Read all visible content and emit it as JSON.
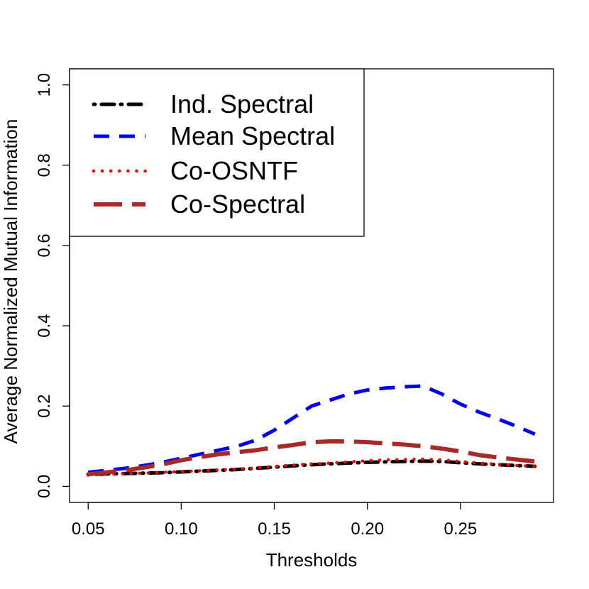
{
  "chart_data": {
    "type": "line",
    "title": "",
    "xlabel": "Thresholds",
    "ylabel": "Average Normalized Mutual Information",
    "xlim": [
      0.04,
      0.3
    ],
    "ylim": [
      -0.04,
      1.04
    ],
    "x_ticks": [
      0.05,
      0.1,
      0.15,
      0.2,
      0.25
    ],
    "x_tick_labels": [
      "0.05",
      "0.10",
      "0.15",
      "0.20",
      "0.25"
    ],
    "y_ticks": [
      0.0,
      0.2,
      0.4,
      0.6,
      0.8,
      1.0
    ],
    "y_tick_labels": [
      "0.0",
      "0.2",
      "0.4",
      "0.6",
      "0.8",
      "1.0"
    ],
    "grid": false,
    "legend_position": "top-left",
    "x": [
      0.05,
      0.06,
      0.07,
      0.08,
      0.09,
      0.1,
      0.11,
      0.12,
      0.13,
      0.14,
      0.15,
      0.16,
      0.17,
      0.18,
      0.19,
      0.2,
      0.21,
      0.22,
      0.23,
      0.24,
      0.25,
      0.26,
      0.27,
      0.28,
      0.29
    ],
    "series": [
      {
        "name": "Ind. Spectral",
        "color": "#000000",
        "dash": "dotdash",
        "values": [
          0.03,
          0.031,
          0.032,
          0.033,
          0.034,
          0.036,
          0.038,
          0.04,
          0.042,
          0.045,
          0.048,
          0.051,
          0.054,
          0.056,
          0.058,
          0.06,
          0.061,
          0.062,
          0.063,
          0.062,
          0.059,
          0.056,
          0.054,
          0.052,
          0.05
        ]
      },
      {
        "name": "Mean Spectral",
        "color": "#0000ee",
        "dash": "dashed",
        "values": [
          0.035,
          0.04,
          0.045,
          0.052,
          0.06,
          0.07,
          0.08,
          0.09,
          0.1,
          0.115,
          0.14,
          0.17,
          0.2,
          0.215,
          0.23,
          0.24,
          0.245,
          0.248,
          0.25,
          0.23,
          0.205,
          0.185,
          0.168,
          0.15,
          0.13
        ]
      },
      {
        "name": "Co-OSNTF",
        "color": "#ff0000",
        "dash": "dotted",
        "values": [
          0.028,
          0.03,
          0.032,
          0.033,
          0.035,
          0.037,
          0.039,
          0.041,
          0.043,
          0.046,
          0.05,
          0.053,
          0.056,
          0.058,
          0.061,
          0.064,
          0.066,
          0.067,
          0.068,
          0.066,
          0.062,
          0.058,
          0.055,
          0.052,
          0.05
        ]
      },
      {
        "name": "Co-Spectral",
        "color": "#a52a2a",
        "dash": "longdash",
        "values": [
          0.03,
          0.035,
          0.04,
          0.047,
          0.055,
          0.065,
          0.073,
          0.08,
          0.085,
          0.09,
          0.097,
          0.103,
          0.11,
          0.112,
          0.112,
          0.11,
          0.107,
          0.104,
          0.1,
          0.094,
          0.087,
          0.078,
          0.072,
          0.067,
          0.062
        ]
      }
    ]
  }
}
